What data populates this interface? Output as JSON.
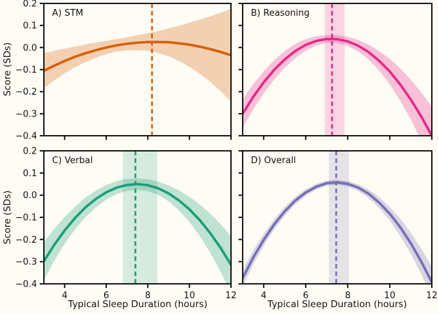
{
  "figure": {
    "ylabel": "Score (SDs)",
    "xlabel": "Typical Sleep Duration (hours)",
    "x_ticks": [
      4,
      6,
      8,
      10,
      12
    ],
    "x_tick_labels": [
      "4",
      "6",
      "8",
      "10",
      "12"
    ],
    "y_ticks": [
      0.2,
      0.1,
      0.0,
      -0.1,
      -0.2,
      -0.3,
      -0.4
    ],
    "y_tick_labels": [
      "0.2",
      "0.1",
      "0.0",
      "−0.1",
      "−0.2",
      "−0.3",
      "−0.4"
    ],
    "background": "#FEFCF5",
    "text_color": "#111111"
  },
  "chart_data": [
    {
      "type": "line",
      "panel": "A",
      "title": "A) STM",
      "color": "#D95F02",
      "xlim": [
        3,
        12
      ],
      "ylim": [
        -0.4,
        0.2
      ],
      "x": [
        3,
        3.5,
        4,
        4.5,
        5,
        5.5,
        6,
        6.5,
        7,
        7.5,
        8,
        8.5,
        9,
        9.5,
        10,
        10.5,
        11,
        11.5,
        12
      ],
      "y": [
        -0.105,
        -0.082,
        -0.061,
        -0.042,
        -0.026,
        -0.012,
        0.0,
        0.01,
        0.017,
        0.022,
        0.025,
        0.025,
        0.024,
        0.019,
        0.013,
        0.004,
        -0.007,
        -0.02,
        -0.035
      ],
      "ci_upper": [
        -0.025,
        -0.015,
        -0.005,
        0.005,
        0.014,
        0.022,
        0.03,
        0.038,
        0.047,
        0.056,
        0.065,
        0.075,
        0.087,
        0.099,
        0.113,
        0.127,
        0.141,
        0.158,
        0.175
      ],
      "ci_lower": [
        -0.185,
        -0.149,
        -0.117,
        -0.089,
        -0.066,
        -0.046,
        -0.03,
        -0.018,
        -0.013,
        -0.012,
        -0.015,
        -0.025,
        -0.039,
        -0.061,
        -0.087,
        -0.119,
        -0.155,
        -0.198,
        -0.245
      ],
      "optimum_x": 8.2,
      "optimum_band": null
    },
    {
      "type": "line",
      "panel": "B",
      "title": "B) Reasoning",
      "color": "#E7298A",
      "xlim": [
        3,
        12
      ],
      "ylim": [
        -0.4,
        0.2
      ],
      "x": [
        3,
        3.5,
        4,
        4.5,
        5,
        5.5,
        6,
        6.5,
        7,
        7.5,
        8,
        8.5,
        9,
        9.5,
        10,
        10.5,
        11,
        11.5,
        12
      ],
      "y": [
        -0.3,
        -0.224,
        -0.158,
        -0.101,
        -0.054,
        -0.016,
        0.012,
        0.03,
        0.039,
        0.038,
        0.028,
        0.008,
        -0.021,
        -0.061,
        -0.109,
        -0.168,
        -0.236,
        -0.313,
        -0.4
      ],
      "ci_upper": [
        -0.235,
        -0.167,
        -0.108,
        -0.057,
        -0.016,
        0.016,
        0.038,
        0.051,
        0.057,
        0.056,
        0.049,
        0.034,
        0.013,
        -0.017,
        -0.051,
        -0.095,
        -0.146,
        -0.203,
        -0.27
      ],
      "ci_lower": [
        -0.365,
        -0.281,
        -0.208,
        -0.145,
        -0.092,
        -0.048,
        -0.014,
        0.009,
        0.021,
        0.02,
        0.007,
        -0.018,
        -0.055,
        -0.105,
        -0.167,
        -0.241,
        -0.326,
        -0.423,
        -0.53
      ],
      "optimum_x": 7.25,
      "optimum_band": [
        6.9,
        7.85
      ]
    },
    {
      "type": "line",
      "panel": "C",
      "title": "C) Verbal",
      "color": "#1B9E77",
      "xlim": [
        3,
        12
      ],
      "ylim": [
        -0.4,
        0.2
      ],
      "x": [
        3,
        3.5,
        4,
        4.5,
        5,
        5.5,
        6,
        6.5,
        7,
        7.5,
        8,
        8.5,
        9,
        9.5,
        10,
        10.5,
        11,
        11.5,
        12
      ],
      "y": [
        -0.298,
        -0.224,
        -0.159,
        -0.103,
        -0.055,
        -0.017,
        0.013,
        0.034,
        0.046,
        0.05,
        0.045,
        0.031,
        0.008,
        -0.024,
        -0.064,
        -0.113,
        -0.171,
        -0.238,
        -0.314
      ],
      "ci_upper": [
        -0.213,
        -0.152,
        -0.099,
        -0.052,
        -0.011,
        0.021,
        0.046,
        0.063,
        0.073,
        0.076,
        0.072,
        0.061,
        0.044,
        0.021,
        -0.007,
        -0.042,
        -0.083,
        -0.131,
        -0.186
      ],
      "ci_lower": [
        -0.383,
        -0.296,
        -0.219,
        -0.154,
        -0.099,
        -0.055,
        -0.02,
        0.005,
        0.019,
        0.024,
        0.018,
        0.001,
        -0.028,
        -0.069,
        -0.121,
        -0.184,
        -0.259,
        -0.345,
        -0.442
      ],
      "optimum_x": 7.4,
      "optimum_band": [
        6.8,
        8.45
      ]
    },
    {
      "type": "line",
      "panel": "D",
      "title": "D) Overall",
      "color": "#7570B3",
      "xlim": [
        3,
        12
      ],
      "ylim": [
        -0.4,
        0.2
      ],
      "x": [
        3,
        3.5,
        4,
        4.5,
        5,
        5.5,
        6,
        6.5,
        7,
        7.5,
        8,
        8.5,
        9,
        9.5,
        10,
        10.5,
        11,
        11.5,
        12
      ],
      "y": [
        -0.374,
        -0.282,
        -0.202,
        -0.132,
        -0.073,
        -0.025,
        0.012,
        0.038,
        0.054,
        0.058,
        0.051,
        0.034,
        0.006,
        -0.034,
        -0.084,
        -0.145,
        -0.217,
        -0.3,
        -0.393
      ],
      "ci_upper": [
        -0.336,
        -0.25,
        -0.175,
        -0.109,
        -0.053,
        -0.008,
        0.027,
        0.051,
        0.066,
        0.07,
        0.064,
        0.049,
        0.025,
        -0.01,
        -0.053,
        -0.106,
        -0.169,
        -0.242,
        -0.323
      ],
      "ci_lower": [
        -0.412,
        -0.314,
        -0.229,
        -0.155,
        -0.093,
        -0.042,
        -0.003,
        0.025,
        0.042,
        0.046,
        0.038,
        0.019,
        -0.013,
        -0.058,
        -0.115,
        -0.184,
        -0.265,
        -0.358,
        -0.463
      ],
      "optimum_x": 7.45,
      "optimum_band": [
        7.1,
        8.05
      ]
    }
  ]
}
